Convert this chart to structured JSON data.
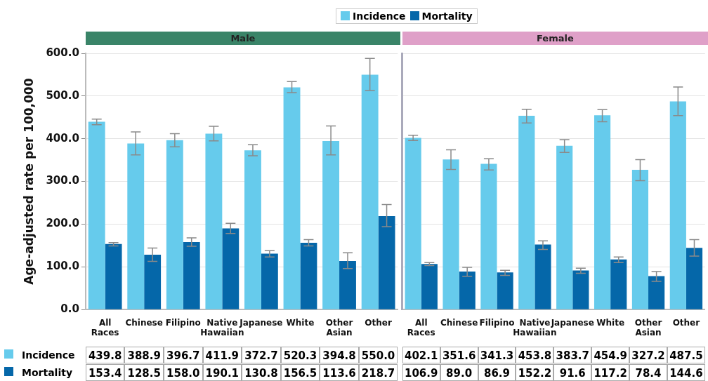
{
  "chart_data": [
    {
      "type": "bar",
      "title": "Male",
      "ylabel": "Age-adjusted rate per 100,000",
      "categories": [
        "All Races",
        "Chinese",
        "Filipino",
        "Native Hawaiian",
        "Japanese",
        "White",
        "Other Asian",
        "Other"
      ],
      "series": [
        {
          "name": "Incidence",
          "color": "#66cbec",
          "values": [
            439.8,
            388.9,
            396.7,
            411.9,
            372.7,
            520.3,
            394.8,
            550.0
          ],
          "value_labels": [
            "439.8",
            "388.9",
            "396.7",
            "411.9",
            "372.7",
            "520.3",
            "394.8",
            "550.0"
          ],
          "errors": [
            [
              433,
              446
            ],
            [
              362,
              416
            ],
            [
              381,
              412
            ],
            [
              395,
              429
            ],
            [
              360,
              386
            ],
            [
              508,
              534
            ],
            [
              362,
              430
            ],
            [
              513,
              588
            ]
          ]
        },
        {
          "name": "Mortality",
          "color": "#0567a9",
          "values": [
            153.4,
            128.5,
            158.0,
            190.1,
            130.8,
            156.5,
            113.6,
            218.7
          ],
          "value_labels": [
            "153.4",
            "128.5",
            "158.0",
            "190.1",
            "130.8",
            "156.5",
            "113.6",
            "218.7"
          ],
          "errors": [
            [
              149,
              157
            ],
            [
              113,
              144
            ],
            [
              148,
              168
            ],
            [
              178,
              202
            ],
            [
              123,
              138
            ],
            [
              149,
              164
            ],
            [
              96,
              133
            ],
            [
              194,
              246
            ]
          ]
        }
      ],
      "ylim": [
        0,
        600
      ],
      "yticks": [
        {
          "value": 0,
          "label": "0.0"
        },
        {
          "value": 100,
          "label": "100.0"
        },
        {
          "value": 200,
          "label": "200.0"
        },
        {
          "value": 300,
          "label": "300.0"
        },
        {
          "value": 400,
          "label": "400.0"
        },
        {
          "value": 500,
          "label": "500.0"
        },
        {
          "value": 600,
          "label": "600.0"
        }
      ],
      "grid": "y",
      "legend": "bottom left"
    },
    {
      "type": "bar",
      "title": "Female",
      "categories": [
        "All Races",
        "Chinese",
        "Filipino",
        "Native Hawaiian",
        "Japanese",
        "White",
        "Other Asian",
        "Other"
      ],
      "series": [
        {
          "name": "Incidence",
          "color": "#66cbec",
          "values": [
            402.1,
            351.6,
            341.3,
            453.8,
            383.7,
            454.9,
            327.2,
            487.5
          ],
          "value_labels": [
            "402.1",
            "351.6",
            "341.3",
            "453.8",
            "383.7",
            "454.9",
            "327.2",
            "487.5"
          ],
          "errors": [
            [
              396,
              408
            ],
            [
              328,
              374
            ],
            [
              327,
              353
            ],
            [
              437,
              469
            ],
            [
              368,
              398
            ],
            [
              440,
              468
            ],
            [
              302,
              351
            ],
            [
              454,
              521
            ]
          ]
        },
        {
          "name": "Mortality",
          "color": "#0567a9",
          "values": [
            106.9,
            89.0,
            86.9,
            152.2,
            91.6,
            117.2,
            78.4,
            144.6
          ],
          "value_labels": [
            "106.9",
            "89.0",
            "86.9",
            "152.2",
            "91.6",
            "117.2",
            "78.4",
            "144.6"
          ],
          "errors": [
            [
              103,
              110
            ],
            [
              78,
              99
            ],
            [
              80,
              92
            ],
            [
              141,
              161
            ],
            [
              85,
              97
            ],
            [
              110,
              123
            ],
            [
              66,
              89
            ],
            [
              125,
              164
            ]
          ]
        }
      ],
      "ylim": [
        0,
        600
      ],
      "yticks": [
        0,
        100,
        200,
        300,
        400,
        500,
        600
      ],
      "grid": "y",
      "tick_labels": "x",
      "legend": "top left"
    }
  ]
}
